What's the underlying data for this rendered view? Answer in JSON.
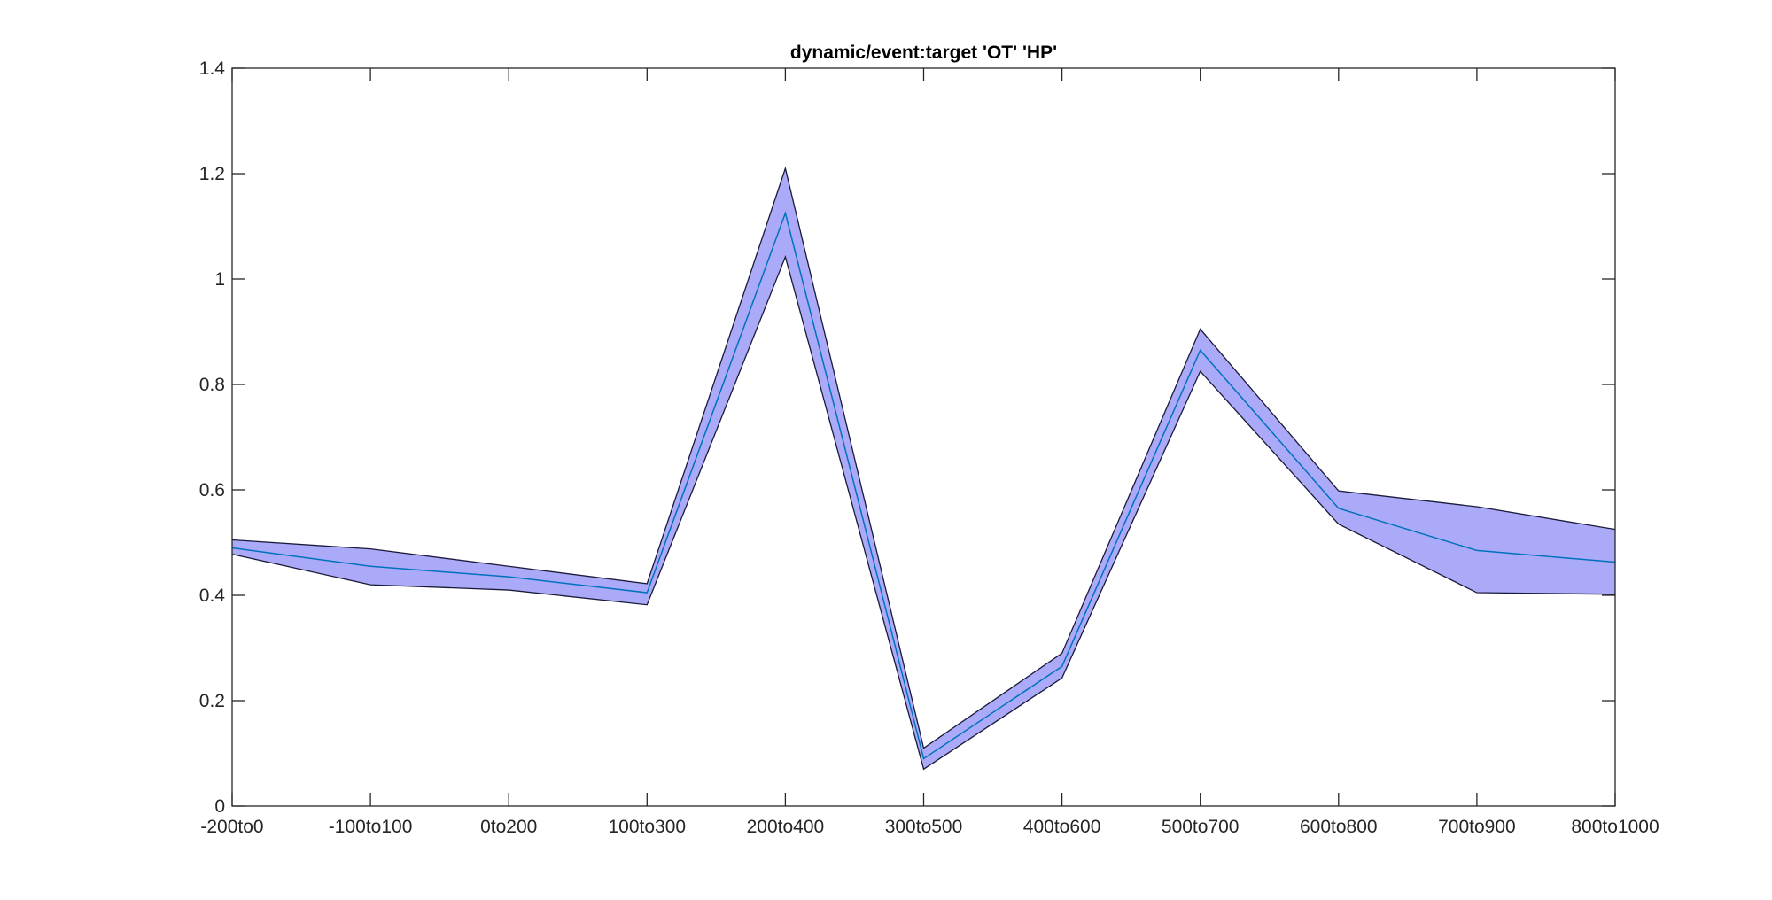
{
  "chart_data": {
    "type": "area",
    "title": "dynamic/event:target 'OT'  'HP'",
    "xlabel": "",
    "ylabel": "",
    "categories": [
      "-200to0",
      "-100to100",
      "0to200",
      "100to300",
      "200to400",
      "300to500",
      "400to600",
      "500to700",
      "600to800",
      "700to900",
      "800to1000"
    ],
    "ylim": [
      0,
      1.4
    ],
    "yticks": [
      0,
      0.2,
      0.4,
      0.6,
      0.8,
      1,
      1.2,
      1.4
    ],
    "ytick_labels": [
      "0",
      "0.2",
      "0.4",
      "0.6",
      "0.8",
      "1",
      "1.2",
      "1.4"
    ],
    "grid": false,
    "series": [
      {
        "role": "mean",
        "values": [
          0.49,
          0.455,
          0.435,
          0.405,
          1.125,
          0.09,
          0.265,
          0.865,
          0.565,
          0.485,
          0.463
        ]
      },
      {
        "role": "upper",
        "values": [
          0.505,
          0.488,
          0.455,
          0.422,
          1.21,
          0.11,
          0.29,
          0.905,
          0.598,
          0.568,
          0.525
        ]
      },
      {
        "role": "lower",
        "values": [
          0.478,
          0.42,
          0.41,
          0.382,
          1.042,
          0.07,
          0.243,
          0.825,
          0.535,
          0.405,
          0.402
        ]
      }
    ],
    "colors": {
      "band_fill": "#aaaaf8",
      "band_edge": "#1a1a3a",
      "mean_line": "#0072bd",
      "axis": "#262626"
    }
  }
}
